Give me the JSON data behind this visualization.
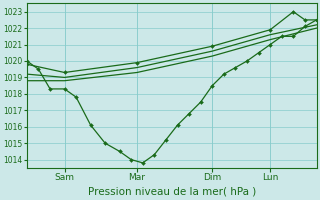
{
  "title": "Pression niveau de la mer( hPa )",
  "bg_color": "#cce8e8",
  "grid_color": "#88cccc",
  "line_color": "#1a6b1a",
  "ylim": [
    1013.5,
    1023.5
  ],
  "yticks": [
    1014,
    1015,
    1016,
    1017,
    1018,
    1019,
    1020,
    1021,
    1022,
    1023
  ],
  "xtick_labels": [
    "Sam",
    "Mar",
    "Dim",
    "Lun"
  ],
  "xtick_positions": [
    0.13,
    0.38,
    0.64,
    0.84
  ],
  "vlines": [
    0.13,
    0.38,
    0.64,
    0.84
  ],
  "series1": {
    "x": [
      0.0,
      0.04,
      0.08,
      0.13,
      0.17,
      0.22,
      0.27,
      0.32,
      0.36,
      0.4,
      0.44,
      0.48,
      0.52,
      0.56,
      0.6,
      0.64,
      0.68,
      0.72,
      0.76,
      0.8,
      0.84,
      0.88,
      0.92,
      0.96,
      1.0
    ],
    "y": [
      1020.0,
      1019.5,
      1018.3,
      1018.3,
      1017.8,
      1016.1,
      1015.0,
      1014.5,
      1014.0,
      1013.8,
      1014.3,
      1015.2,
      1016.1,
      1016.8,
      1017.5,
      1018.5,
      1019.2,
      1019.6,
      1020.0,
      1020.5,
      1021.0,
      1021.5,
      1021.5,
      1022.1,
      1022.5
    ],
    "markers": true
  },
  "series2": {
    "x": [
      0.0,
      0.13,
      0.38,
      0.64,
      0.84,
      1.0
    ],
    "y": [
      1018.8,
      1018.8,
      1019.3,
      1020.3,
      1021.3,
      1022.0
    ],
    "markers": false
  },
  "series3": {
    "x": [
      0.0,
      0.13,
      0.38,
      0.64,
      0.84,
      1.0
    ],
    "y": [
      1019.2,
      1019.0,
      1019.6,
      1020.6,
      1021.6,
      1022.2
    ],
    "markers": false
  },
  "series4": {
    "x": [
      0.0,
      0.13,
      0.38,
      0.64,
      0.84,
      0.92,
      0.96,
      1.0
    ],
    "y": [
      1019.8,
      1019.3,
      1019.9,
      1020.9,
      1021.9,
      1023.0,
      1022.5,
      1022.5
    ],
    "markers": true
  }
}
